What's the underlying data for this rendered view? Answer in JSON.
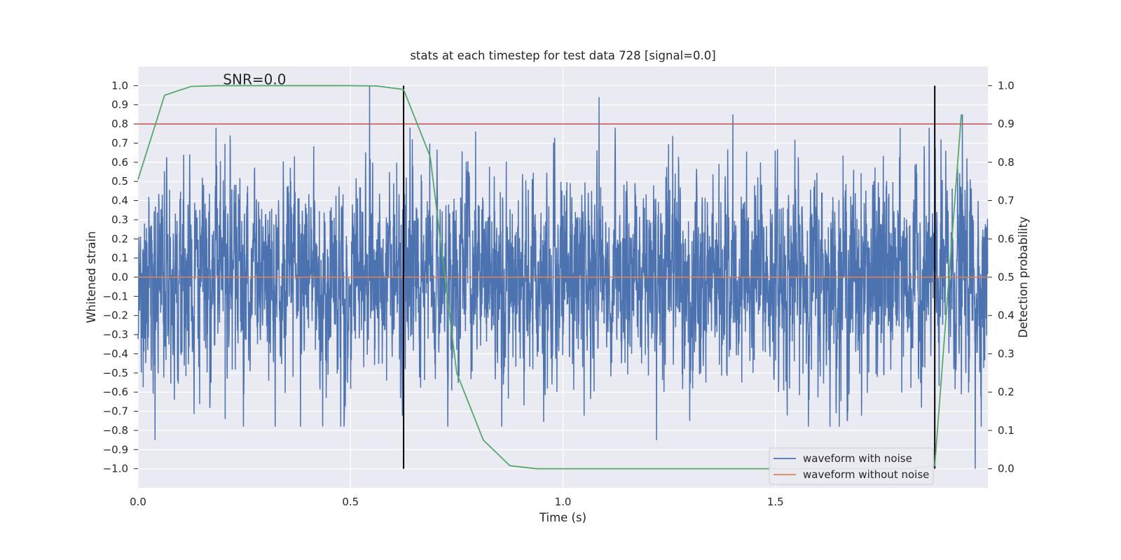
{
  "chart_data": {
    "type": "line",
    "title": "stats at each timestep for test data 728 [signal=0.0]",
    "annotation": "SNR=0.0",
    "xlabel": "Time (s)",
    "ylabel": "Whitened strain",
    "y2label": "Detection probability",
    "xlim": [
      0.0,
      2.0
    ],
    "ylim": [
      -1.1,
      1.1
    ],
    "y2lim": [
      -0.05,
      1.05
    ],
    "xticks": [
      0.0,
      0.5,
      1.0,
      1.5
    ],
    "xtick_labels": [
      "0.0",
      "0.5",
      "1.0",
      "1.5"
    ],
    "yticks": [
      -1.0,
      -0.9,
      -0.8,
      -0.7,
      -0.6,
      -0.5,
      -0.4,
      -0.3,
      -0.2,
      -0.1,
      0.0,
      0.1,
      0.2,
      0.3,
      0.4,
      0.5,
      0.6,
      0.7,
      0.8,
      0.9,
      1.0
    ],
    "ytick_labels": [
      "−1.0",
      "−0.9",
      "−0.8",
      "−0.7",
      "−0.6",
      "−0.5",
      "−0.4",
      "−0.3",
      "−0.2",
      "−0.1",
      "0.0",
      "0.1",
      "0.2",
      "0.3",
      "0.4",
      "0.5",
      "0.6",
      "0.7",
      "0.8",
      "0.9",
      "1.0"
    ],
    "y2ticks": [
      0.0,
      0.1,
      0.2,
      0.3,
      0.4,
      0.5,
      0.6,
      0.7,
      0.8,
      0.9,
      1.0
    ],
    "y2tick_labels": [
      "0.0",
      "0.1",
      "0.2",
      "0.3",
      "0.4",
      "0.5",
      "0.6",
      "0.7",
      "0.8",
      "0.9",
      "1.0"
    ],
    "threshold_line": {
      "y": 0.8,
      "color": "#c44e52"
    },
    "vertical_lines": [
      {
        "x": 0.625,
        "ymin": -1.0,
        "ymax": 1.0,
        "color": "#000000"
      },
      {
        "x": 1.875,
        "ymin": -1.0,
        "ymax": 1.0,
        "color": "#000000"
      }
    ],
    "series": [
      {
        "name": "waveform with noise",
        "color": "#4c72b0",
        "axis": "left",
        "kind": "noise",
        "duration": 2.0,
        "sample_rate": 2048,
        "amplitude_range": [
          -1.0,
          1.0
        ],
        "notable_peaks": [
          {
            "x": 0.545,
            "y": 1.0
          },
          {
            "x": 1.085,
            "y": 0.94
          },
          {
            "x": 1.4,
            "y": 0.85
          },
          {
            "x": 1.94,
            "y": 0.85
          },
          {
            "x": 1.97,
            "y": -1.0
          },
          {
            "x": 0.04,
            "y": -0.85
          },
          {
            "x": 1.22,
            "y": -0.85
          },
          {
            "x": 0.205,
            "y": -0.74
          }
        ]
      },
      {
        "name": "waveform without noise",
        "color": "#dd8452",
        "axis": "left",
        "x": [
          0.0,
          2.0
        ],
        "y": [
          0.0,
          0.0
        ]
      },
      {
        "name": "detection probability",
        "color": "#55a868",
        "axis": "right",
        "x": [
          0.0,
          0.0625,
          0.125,
          0.1875,
          0.25,
          0.3125,
          0.375,
          0.4375,
          0.5,
          0.5625,
          0.625,
          0.6875,
          0.75,
          0.8125,
          0.875,
          0.9375,
          1.0,
          1.0625,
          1.125,
          1.1875,
          1.25,
          1.3125,
          1.375,
          1.4375,
          1.5,
          1.5625,
          1.625,
          1.6875,
          1.75,
          1.8125,
          1.875,
          1.9375
        ],
        "y": [
          0.755,
          0.975,
          0.998,
          1.0,
          1.0,
          1.0,
          1.0,
          1.0,
          1.0,
          0.999,
          0.99,
          0.815,
          0.25,
          0.075,
          0.008,
          0.0,
          0.0,
          0.0,
          0.0,
          0.0,
          0.0,
          0.0,
          0.0,
          0.0,
          0.0,
          0.0,
          0.0,
          0.0,
          0.0,
          0.0,
          0.008,
          0.925
        ]
      }
    ],
    "legend": {
      "placement": "bottom-right",
      "entries": [
        {
          "label": "waveform with noise",
          "color": "#4c72b0"
        },
        {
          "label": "waveform without noise",
          "color": "#dd8452"
        }
      ]
    },
    "style": {
      "plot_background": "#eaeaf2",
      "grid_color": "#ffffff",
      "grid": true
    }
  }
}
